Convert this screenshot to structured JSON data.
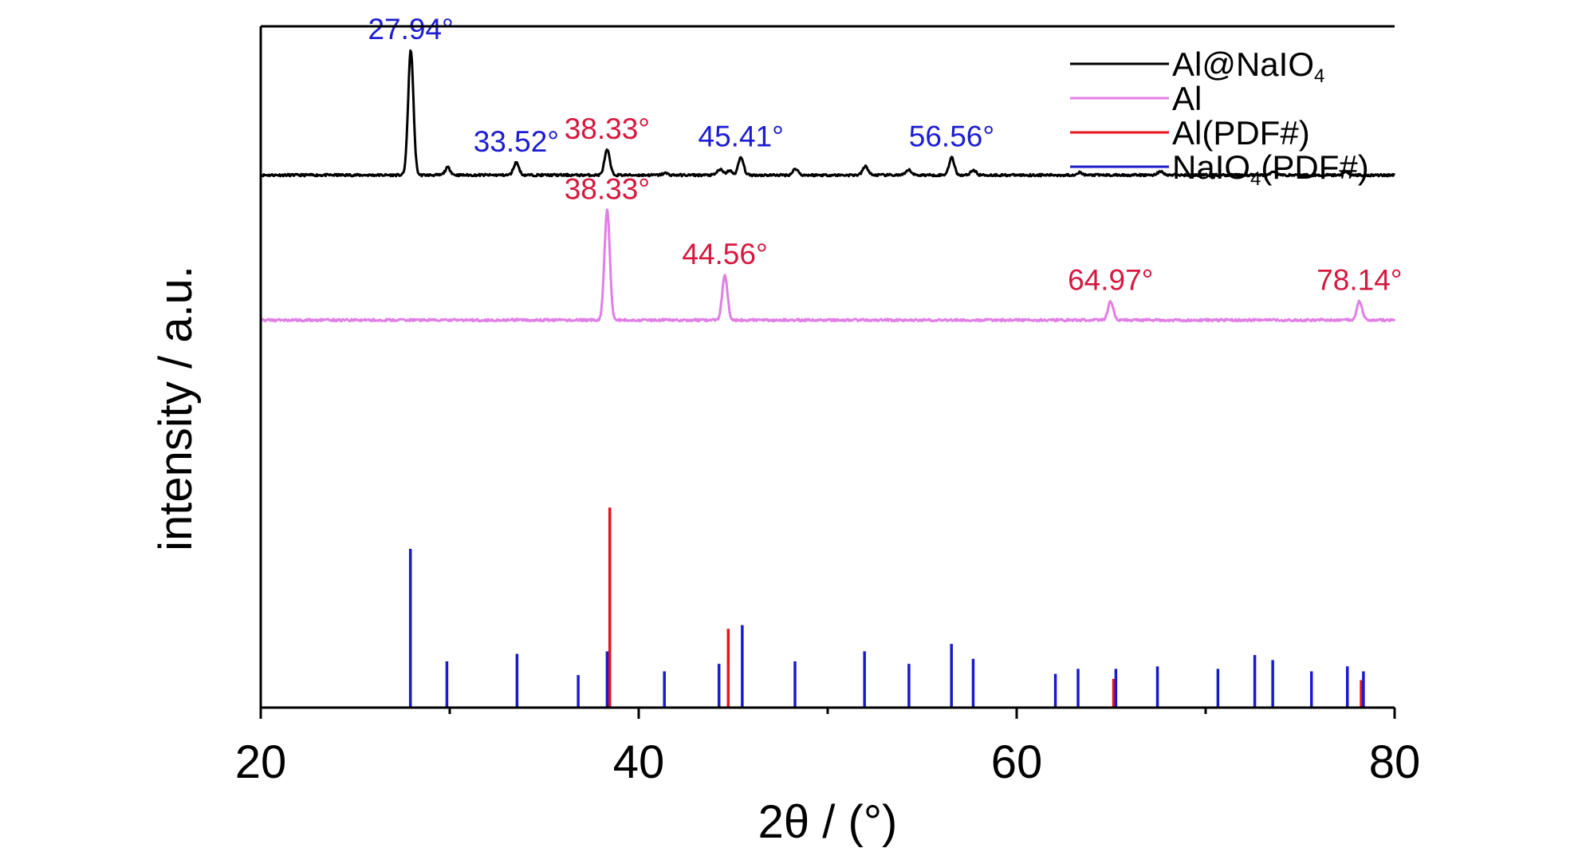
{
  "chart_data": {
    "type": "line",
    "title": "",
    "xlabel": "2θ / (°)",
    "ylabel": "intensity / a.u.",
    "xlim": [
      20,
      80
    ],
    "xticks": [
      20,
      40,
      60,
      80
    ],
    "yticks": "none",
    "grid": false,
    "legend": {
      "placement": "top-right"
    },
    "colors": {
      "al_naio4": "#000000",
      "al": "#e07ee6",
      "al_pdf": "#e8141b",
      "naio4_pdf": "#1a1acd",
      "annotation_blue": "#1c1cd2",
      "annotation_red": "#d6183f"
    },
    "series": [
      {
        "name": "Al@NaIO4",
        "legend_parts": [
          "Al@NaIO",
          "4",
          ""
        ],
        "kind": "pattern",
        "color": "#000000",
        "baseline": 0.6,
        "peaks": [
          {
            "x": 27.94,
            "y": 10.0
          },
          {
            "x": 29.9,
            "y": 0.6
          },
          {
            "x": 33.52,
            "y": 1.0
          },
          {
            "x": 38.33,
            "y": 2.0
          },
          {
            "x": 41.4,
            "y": 0.15
          },
          {
            "x": 44.3,
            "y": 0.45
          },
          {
            "x": 44.8,
            "y": 0.35
          },
          {
            "x": 45.41,
            "y": 1.4
          },
          {
            "x": 48.3,
            "y": 0.5
          },
          {
            "x": 52.0,
            "y": 0.7
          },
          {
            "x": 54.3,
            "y": 0.4
          },
          {
            "x": 56.56,
            "y": 1.4
          },
          {
            "x": 57.7,
            "y": 0.4
          },
          {
            "x": 63.3,
            "y": 0.2
          },
          {
            "x": 67.6,
            "y": 0.3
          },
          {
            "x": 73.6,
            "y": 0.3
          },
          {
            "x": 77.4,
            "y": 0.3
          }
        ],
        "annotations": [
          {
            "x": 27.94,
            "text": "27.94°",
            "color": "#1c1cd2"
          },
          {
            "x": 33.52,
            "text": "33.52°",
            "color": "#1c1cd2"
          },
          {
            "x": 38.33,
            "text": "38.33°",
            "color": "#d6183f"
          },
          {
            "x": 45.41,
            "text": "45.41°",
            "color": "#1c1cd2"
          },
          {
            "x": 56.56,
            "text": "56.56°",
            "color": "#1c1cd2"
          }
        ]
      },
      {
        "name": "Al",
        "legend_parts": [
          "Al",
          "",
          ""
        ],
        "kind": "pattern",
        "color": "#e07ee6",
        "baseline": -11.0,
        "peaks": [
          {
            "x": 38.33,
            "y": 8.8
          },
          {
            "x": 44.56,
            "y": 3.6
          },
          {
            "x": 64.97,
            "y": 1.5
          },
          {
            "x": 78.14,
            "y": 1.5
          }
        ],
        "annotations": [
          {
            "x": 38.33,
            "text": "38.33°",
            "color": "#d6183f"
          },
          {
            "x": 44.56,
            "text": "44.56°",
            "color": "#d6183f"
          },
          {
            "x": 64.97,
            "text": "64.97°",
            "color": "#d6183f"
          },
          {
            "x": 78.14,
            "text": "78.14°",
            "color": "#d6183f"
          }
        ]
      },
      {
        "name": "Al(PDF#)",
        "legend_parts": [
          "Al(PDF#)",
          "",
          ""
        ],
        "kind": "sticks",
        "color": "#e8141b",
        "baseline": -42.0,
        "sticks": [
          {
            "x": 38.47,
            "y": 16.0
          },
          {
            "x": 44.74,
            "y": 6.3
          },
          {
            "x": 65.13,
            "y": 2.3
          },
          {
            "x": 78.23,
            "y": 2.2
          }
        ]
      },
      {
        "name": "NaIO4(PDF#)",
        "legend_parts": [
          "NaIO",
          "4",
          "(PDF#)"
        ],
        "kind": "sticks",
        "color": "#1a1acd",
        "baseline": -42.0,
        "sticks": [
          {
            "x": 27.92,
            "y": 12.7
          },
          {
            "x": 29.85,
            "y": 3.7
          },
          {
            "x": 33.56,
            "y": 4.3
          },
          {
            "x": 36.8,
            "y": 2.6
          },
          {
            "x": 38.33,
            "y": 4.5
          },
          {
            "x": 41.36,
            "y": 2.9
          },
          {
            "x": 44.25,
            "y": 3.5
          },
          {
            "x": 45.48,
            "y": 6.6
          },
          {
            "x": 48.27,
            "y": 3.7
          },
          {
            "x": 51.95,
            "y": 4.5
          },
          {
            "x": 54.3,
            "y": 3.5
          },
          {
            "x": 56.55,
            "y": 5.1
          },
          {
            "x": 57.7,
            "y": 3.9
          },
          {
            "x": 62.05,
            "y": 2.7
          },
          {
            "x": 63.25,
            "y": 3.1
          },
          {
            "x": 65.25,
            "y": 3.1
          },
          {
            "x": 67.45,
            "y": 3.3
          },
          {
            "x": 70.65,
            "y": 3.1
          },
          {
            "x": 72.6,
            "y": 4.2
          },
          {
            "x": 73.55,
            "y": 3.8
          },
          {
            "x": 75.6,
            "y": 2.9
          },
          {
            "x": 77.5,
            "y": 3.3
          },
          {
            "x": 78.35,
            "y": 2.9
          }
        ]
      }
    ]
  }
}
